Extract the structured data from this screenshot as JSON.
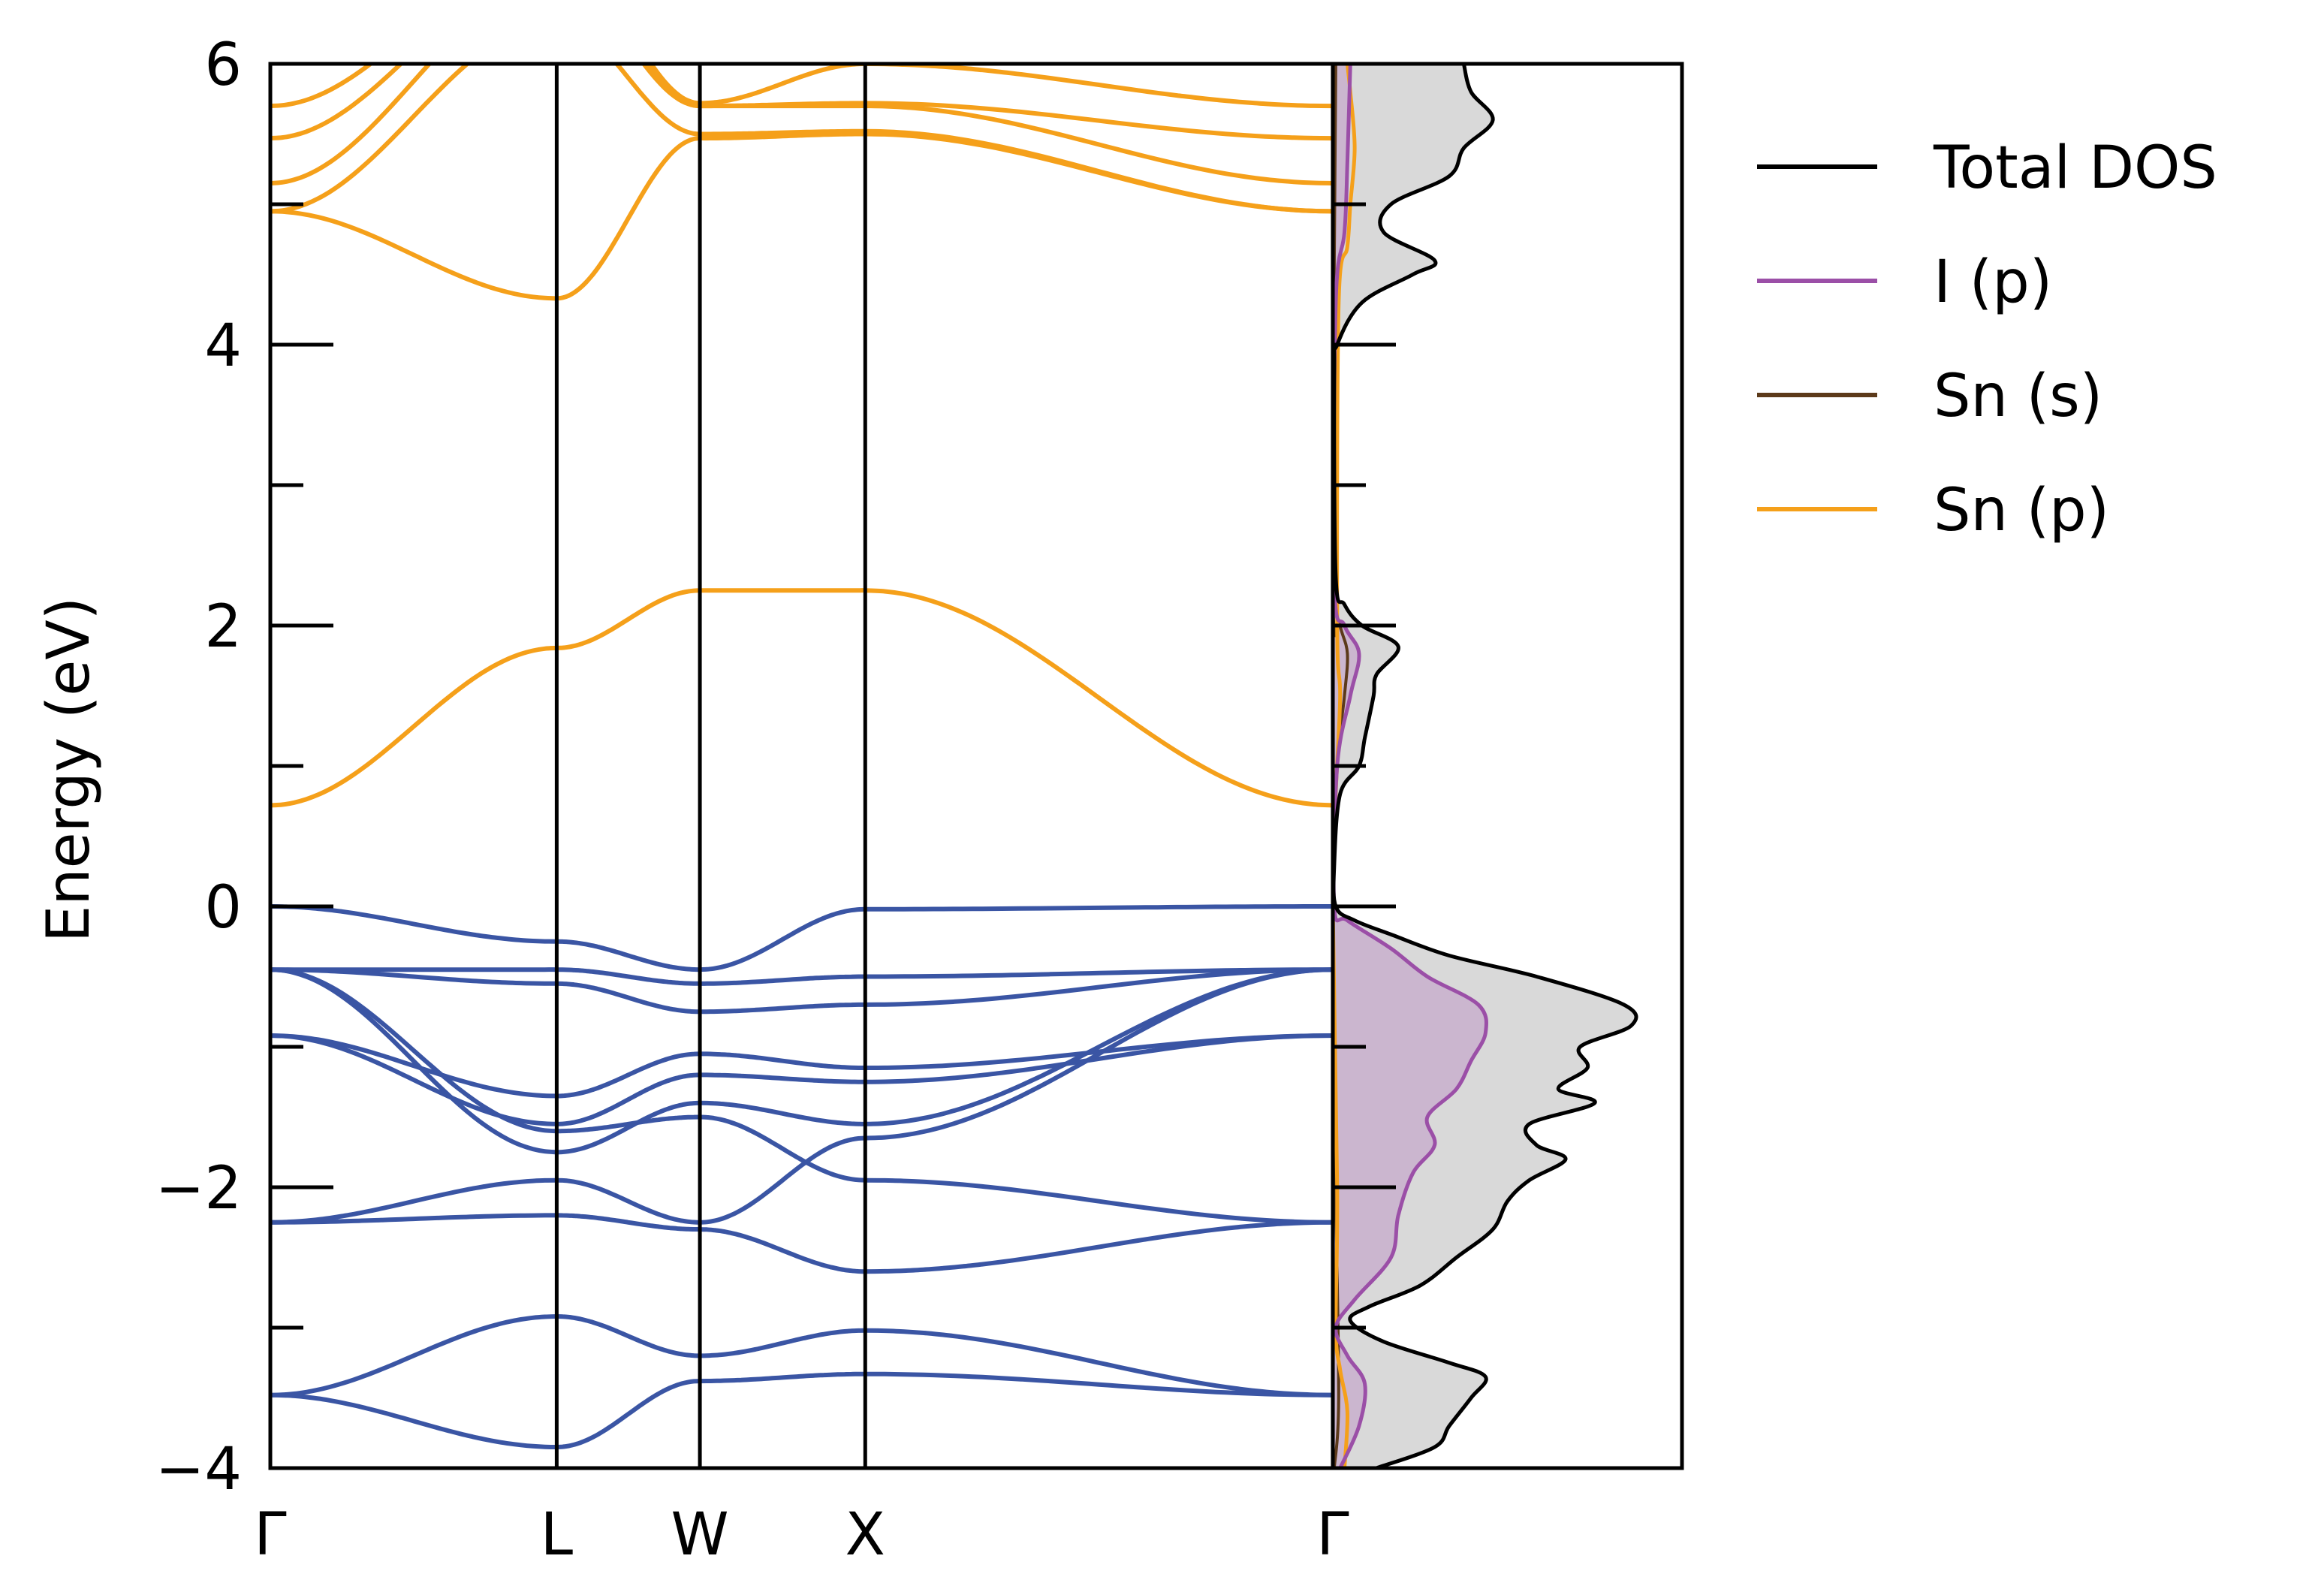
{
  "chart_data": {
    "type": "line",
    "ylabel": "Energy (eV)",
    "ylim": [
      -4,
      6
    ],
    "yticks": [
      -4,
      -2,
      0,
      2,
      4,
      6
    ],
    "yticks_minor": [
      -3,
      -1,
      1,
      3,
      5
    ],
    "ytick_labels": [
      "−4",
      "−2",
      "0",
      "2",
      "4",
      "6"
    ],
    "kpath": {
      "labels": [
        "Γ",
        "L",
        "W",
        "X",
        "Γ"
      ],
      "positions": [
        0.0,
        0.866,
        1.299,
        1.799,
        3.213
      ]
    },
    "colors": {
      "conduction": "#f5a01a",
      "valence": "#3a55a4",
      "total_dos": "#000000",
      "i_p": "#9b4fa7",
      "sn_s": "#5c3a1a",
      "sn_p": "#f5a01a",
      "dos_fill": "#d9d9d9",
      "ip_fill": "#cbb6cf"
    },
    "legend": {
      "placement": "outside-right-top",
      "entries": [
        {
          "label": "Total DOS",
          "color": "#000000"
        },
        {
          "label": "I (p)",
          "color": "#9b4fa7"
        },
        {
          "label": "Sn (s)",
          "color": "#5c3a1a"
        },
        {
          "label": "Sn (p)",
          "color": "#f5a01a"
        }
      ]
    },
    "bands": [
      {
        "group": "conduction",
        "energies": [
          0.72,
          1.84,
          2.25,
          2.25,
          0.72
        ]
      },
      {
        "group": "conduction",
        "energies": [
          4.95,
          4.33,
          5.47,
          5.5,
          4.95
        ]
      },
      {
        "group": "conduction",
        "energies": [
          4.95,
          6.3,
          5.5,
          5.52,
          4.95
        ]
      },
      {
        "group": "conduction",
        "energies": [
          5.15,
          6.6,
          5.7,
          5.7,
          5.15
        ]
      },
      {
        "group": "conduction",
        "energies": [
          5.47,
          6.7,
          5.7,
          5.72,
          5.47
        ]
      },
      {
        "group": "conduction",
        "energies": [
          5.7,
          6.8,
          5.72,
          6.0,
          5.7
        ]
      },
      {
        "group": "valence",
        "energies": [
          0.0,
          -0.25,
          -0.45,
          -0.02,
          0.0
        ]
      },
      {
        "group": "valence",
        "energies": [
          -0.45,
          -0.45,
          -0.55,
          -0.5,
          -0.45
        ]
      },
      {
        "group": "valence",
        "energies": [
          -0.45,
          -0.55,
          -0.75,
          -0.7,
          -0.45
        ]
      },
      {
        "group": "valence",
        "energies": [
          -0.92,
          -1.35,
          -1.05,
          -1.15,
          -0.92
        ]
      },
      {
        "group": "valence",
        "energies": [
          -0.92,
          -1.55,
          -1.2,
          -1.25,
          -0.92
        ]
      },
      {
        "group": "valence",
        "energies": [
          -0.45,
          -1.75,
          -1.4,
          -1.55,
          -0.45
        ]
      },
      {
        "group": "valence",
        "energies": [
          -0.45,
          -1.6,
          -1.5,
          -1.95,
          -2.25
        ]
      },
      {
        "group": "valence",
        "energies": [
          -2.25,
          -1.95,
          -2.25,
          -1.65,
          -0.45
        ]
      },
      {
        "group": "valence",
        "energies": [
          -2.25,
          -2.2,
          -2.3,
          -2.6,
          -2.25
        ]
      },
      {
        "group": "valence",
        "energies": [
          -3.48,
          -2.92,
          -3.2,
          -3.02,
          -3.48
        ]
      },
      {
        "group": "valence",
        "energies": [
          -3.48,
          -3.85,
          -3.38,
          -3.33,
          -3.48
        ]
      }
    ],
    "dos_total": [
      [
        -4.0,
        0.3
      ],
      [
        -3.85,
        0.7
      ],
      [
        -3.7,
        0.8
      ],
      [
        -3.5,
        0.95
      ],
      [
        -3.35,
        1.05
      ],
      [
        -3.25,
        0.8
      ],
      [
        -3.1,
        0.35
      ],
      [
        -2.95,
        0.12
      ],
      [
        -2.85,
        0.25
      ],
      [
        -2.7,
        0.6
      ],
      [
        -2.5,
        0.85
      ],
      [
        -2.3,
        1.1
      ],
      [
        -2.1,
        1.2
      ],
      [
        -1.95,
        1.35
      ],
      [
        -1.8,
        1.6
      ],
      [
        -1.7,
        1.4
      ],
      [
        -1.55,
        1.35
      ],
      [
        -1.4,
        1.8
      ],
      [
        -1.3,
        1.55
      ],
      [
        -1.15,
        1.75
      ],
      [
        -1.0,
        1.7
      ],
      [
        -0.85,
        2.05
      ],
      [
        -0.7,
        2.0
      ],
      [
        -0.5,
        1.4
      ],
      [
        -0.35,
        0.8
      ],
      [
        -0.2,
        0.4
      ],
      [
        -0.1,
        0.15
      ],
      [
        0.0,
        0.02
      ],
      [
        0.3,
        0.01
      ],
      [
        0.8,
        0.05
      ],
      [
        1.0,
        0.18
      ],
      [
        1.2,
        0.22
      ],
      [
        1.5,
        0.28
      ],
      [
        1.65,
        0.3
      ],
      [
        1.85,
        0.45
      ],
      [
        2.0,
        0.2
      ],
      [
        2.15,
        0.08
      ],
      [
        2.35,
        0.02
      ],
      [
        3.8,
        0.01
      ],
      [
        4.0,
        0.03
      ],
      [
        4.3,
        0.2
      ],
      [
        4.5,
        0.55
      ],
      [
        4.6,
        0.7
      ],
      [
        4.8,
        0.35
      ],
      [
        5.0,
        0.4
      ],
      [
        5.2,
        0.8
      ],
      [
        5.4,
        0.9
      ],
      [
        5.6,
        1.1
      ],
      [
        5.8,
        0.95
      ],
      [
        6.0,
        0.9
      ]
    ],
    "dos_i_p": [
      [
        -4.0,
        0.05
      ],
      [
        -3.7,
        0.18
      ],
      [
        -3.4,
        0.22
      ],
      [
        -3.2,
        0.1
      ],
      [
        -3.0,
        0.02
      ],
      [
        -2.8,
        0.15
      ],
      [
        -2.5,
        0.4
      ],
      [
        -2.2,
        0.45
      ],
      [
        -1.9,
        0.55
      ],
      [
        -1.7,
        0.7
      ],
      [
        -1.5,
        0.65
      ],
      [
        -1.3,
        0.85
      ],
      [
        -1.1,
        0.95
      ],
      [
        -0.9,
        1.05
      ],
      [
        -0.7,
        1.0
      ],
      [
        -0.5,
        0.65
      ],
      [
        -0.3,
        0.4
      ],
      [
        -0.1,
        0.1
      ],
      [
        0.0,
        0.01
      ],
      [
        1.0,
        0.03
      ],
      [
        1.5,
        0.12
      ],
      [
        1.8,
        0.18
      ],
      [
        2.0,
        0.08
      ],
      [
        2.3,
        0.01
      ],
      [
        4.3,
        0.02
      ],
      [
        4.8,
        0.08
      ],
      [
        5.3,
        0.1
      ],
      [
        6.0,
        0.12
      ]
    ],
    "dos_sn_s": [
      [
        -4.0,
        0.01
      ],
      [
        -3.5,
        0.04
      ],
      [
        -2.0,
        0.02
      ],
      [
        0.0,
        0.0
      ],
      [
        1.0,
        0.03
      ],
      [
        1.5,
        0.08
      ],
      [
        1.8,
        0.1
      ],
      [
        2.0,
        0.05
      ],
      [
        2.3,
        0.0
      ],
      [
        6.0,
        0.02
      ]
    ],
    "dos_sn_p": [
      [
        -4.0,
        0.08
      ],
      [
        -3.6,
        0.1
      ],
      [
        -3.3,
        0.05
      ],
      [
        -3.0,
        0.02
      ],
      [
        -2.0,
        0.03
      ],
      [
        0.0,
        0.0
      ],
      [
        0.8,
        0.02
      ],
      [
        1.5,
        0.05
      ],
      [
        2.0,
        0.03
      ],
      [
        4.3,
        0.04
      ],
      [
        4.7,
        0.1
      ],
      [
        5.0,
        0.12
      ],
      [
        5.4,
        0.15
      ],
      [
        5.8,
        0.12
      ],
      [
        6.0,
        0.1
      ]
    ],
    "dos_xmax": 2.4
  }
}
